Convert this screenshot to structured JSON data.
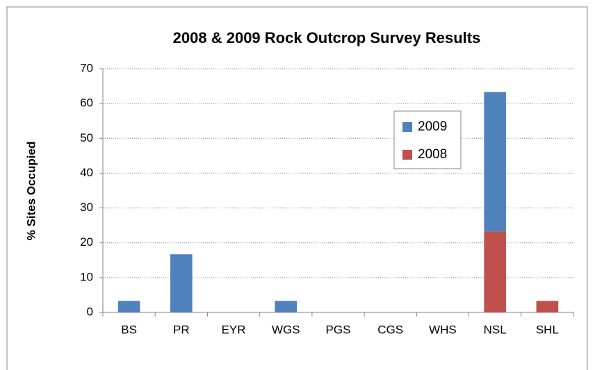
{
  "chart_data": {
    "type": "stacked_bar",
    "title": "2008 & 2009 Rock Outcrop Survey Results",
    "y_label": "% Sites Occupied",
    "categories": [
      "BS",
      "PR",
      "EYR",
      "WGS",
      "PGS",
      "CGS",
      "WHS",
      "NSL",
      "SHL"
    ],
    "series": [
      {
        "name": "2008",
        "color": "#c0504d",
        "values": [
          0,
          0,
          0,
          0,
          0,
          0,
          0,
          23.3,
          3.3
        ]
      },
      {
        "name": "2009",
        "color": "#4f81bd",
        "values": [
          3.3,
          16.7,
          0,
          3.3,
          0,
          0,
          0,
          40,
          0
        ]
      }
    ],
    "ylim": [
      0,
      70
    ],
    "yticks": [
      0,
      10,
      20,
      30,
      40,
      50,
      60,
      70
    ],
    "grid": true,
    "legend": "right"
  }
}
